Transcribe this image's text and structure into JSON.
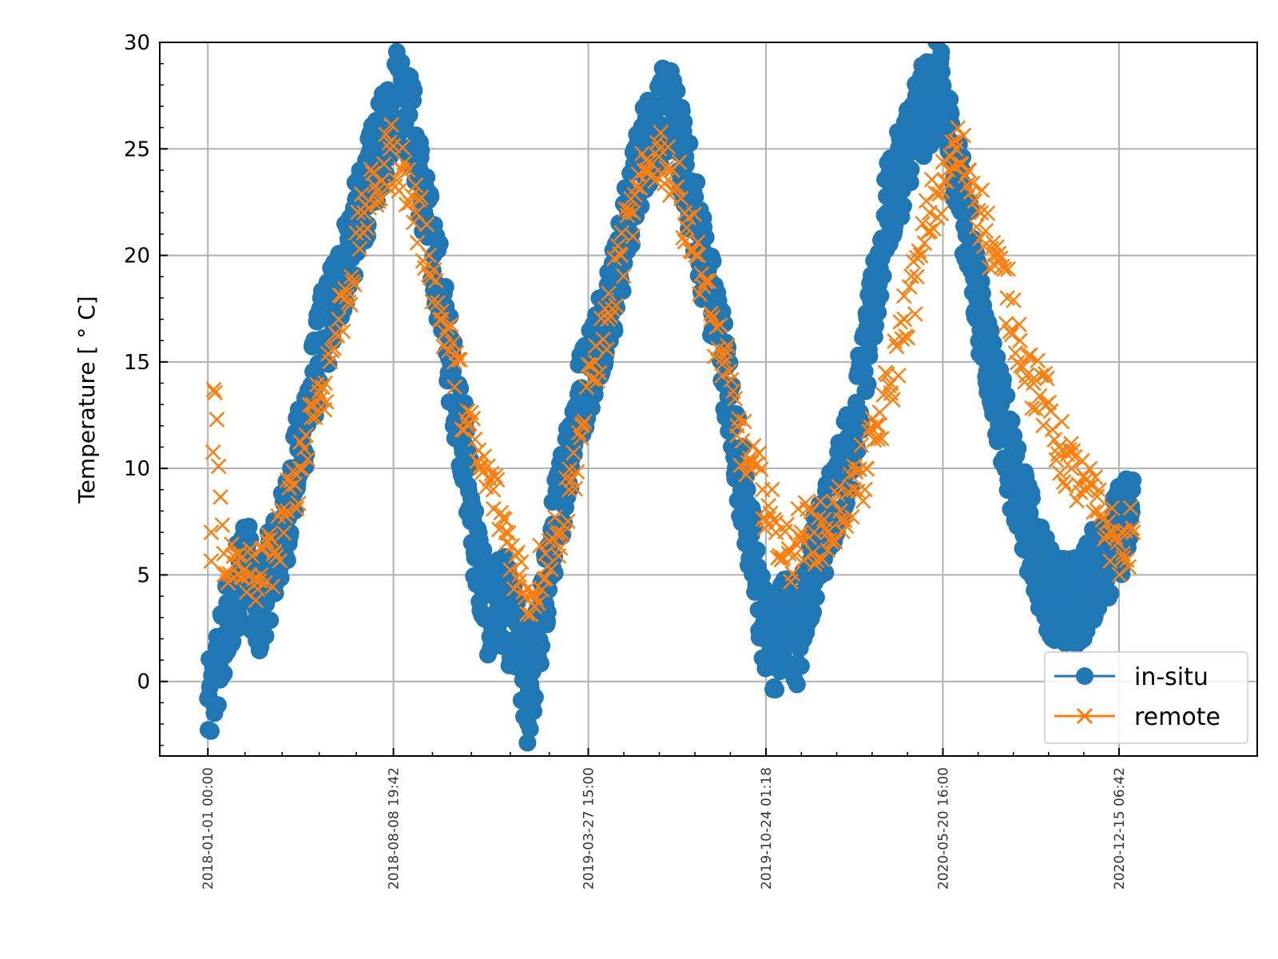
{
  "chart_data": {
    "type": "scatter",
    "title": "",
    "xlabel": "",
    "ylabel": "Temperature [$^\\circ C$]",
    "ylabel_display": "Temperature [ ° C]",
    "x_ticks": [
      "2018-01-01 00:00",
      "2018-08-08 19:42",
      "2019-03-27 15:00",
      "2019-10-24 01:18",
      "2020-05-20 16:00",
      "2020-12-15 06:42"
    ],
    "xlim": [
      "2017-11-05",
      "2021-05-28"
    ],
    "ylim": [
      -3.5,
      30
    ],
    "y_ticks": [
      0,
      5,
      10,
      15,
      20,
      25,
      30
    ],
    "grid": true,
    "legend_position": "lower right",
    "series": [
      {
        "name": "in-situ",
        "marker": "circle",
        "color": "#1f77b4",
        "x": [
          "2018-01-01",
          "2018-01-15",
          "2018-02-01",
          "2018-02-15",
          "2018-03-01",
          "2018-03-15",
          "2018-04-01",
          "2018-04-15",
          "2018-05-01",
          "2018-05-15",
          "2018-06-01",
          "2018-06-15",
          "2018-07-01",
          "2018-07-15",
          "2018-08-01",
          "2018-08-15",
          "2018-09-01",
          "2018-09-15",
          "2018-10-01",
          "2018-10-15",
          "2018-11-01",
          "2018-11-15",
          "2018-12-01",
          "2018-12-15",
          "2019-01-01",
          "2019-01-15",
          "2019-02-01",
          "2019-02-15",
          "2019-03-01",
          "2019-03-15",
          "2019-04-01",
          "2019-04-15",
          "2019-05-01",
          "2019-05-15",
          "2019-06-01",
          "2019-06-15",
          "2019-07-01",
          "2019-07-15",
          "2019-08-01",
          "2019-08-15",
          "2019-09-01",
          "2019-09-15",
          "2019-10-01",
          "2019-10-15",
          "2019-11-01",
          "2019-11-15",
          "2019-12-01",
          "2019-12-15",
          "2020-01-01",
          "2020-01-15",
          "2020-02-01",
          "2020-02-15",
          "2020-03-01",
          "2020-03-15",
          "2020-04-01",
          "2020-04-15",
          "2020-05-01",
          "2020-05-15",
          "2020-06-01",
          "2020-06-15",
          "2020-07-01",
          "2020-07-15",
          "2020-08-01",
          "2020-08-15",
          "2020-09-01",
          "2020-09-15",
          "2020-10-01",
          "2020-10-15",
          "2020-11-01",
          "2020-11-15",
          "2020-12-01",
          "2020-12-15",
          "2021-01-01"
        ],
        "y": [
          -1.5,
          1,
          4,
          6,
          3,
          5,
          7,
          10,
          13,
          16,
          18,
          20,
          22,
          24,
          26,
          28,
          26,
          22,
          19,
          15,
          11,
          6,
          3,
          4,
          2,
          -1,
          3,
          7,
          10,
          13,
          15,
          17,
          19,
          22,
          25,
          26,
          27,
          25,
          22,
          19,
          16,
          12,
          8,
          4,
          1,
          3,
          2,
          5,
          7,
          9,
          11,
          14,
          18,
          22,
          24,
          26,
          27,
          28,
          25,
          22,
          18,
          15,
          12,
          9,
          7,
          5,
          4,
          3.5,
          4,
          5,
          6,
          7,
          8
        ]
      },
      {
        "name": "remote",
        "marker": "x",
        "color": "#ff7f0e",
        "x": [
          "2018-01-05",
          "2018-01-08",
          "2018-01-20",
          "2018-02-05",
          "2018-02-20",
          "2018-03-05",
          "2018-03-20",
          "2018-04-05",
          "2018-04-20",
          "2018-05-05",
          "2018-05-20",
          "2018-06-05",
          "2018-06-20",
          "2018-07-05",
          "2018-07-20",
          "2018-08-05",
          "2018-08-20",
          "2018-09-05",
          "2018-09-20",
          "2018-10-05",
          "2018-10-20",
          "2018-11-05",
          "2018-11-20",
          "2018-12-05",
          "2018-12-20",
          "2019-01-05",
          "2019-01-20",
          "2019-02-05",
          "2019-02-20",
          "2019-03-05",
          "2019-03-20",
          "2019-04-05",
          "2019-04-20",
          "2019-05-05",
          "2019-05-20",
          "2019-06-05",
          "2019-06-20",
          "2019-07-05",
          "2019-07-20",
          "2019-08-05",
          "2019-08-20",
          "2019-09-05",
          "2019-09-20",
          "2019-10-05",
          "2019-10-20",
          "2019-11-05",
          "2019-11-20",
          "2019-12-05",
          "2019-12-20",
          "2020-01-05",
          "2020-01-20",
          "2020-02-05",
          "2020-02-20",
          "2020-03-05",
          "2020-03-20",
          "2020-04-05",
          "2020-04-20",
          "2020-05-05",
          "2020-05-20",
          "2020-06-05",
          "2020-06-20",
          "2020-07-05",
          "2020-07-20",
          "2020-08-05",
          "2020-08-20",
          "2020-09-05",
          "2020-09-20",
          "2020-10-05",
          "2020-10-20",
          "2020-11-05",
          "2020-11-20",
          "2020-12-05",
          "2020-12-20",
          "2021-01-01"
        ],
        "y": [
          7,
          13.7,
          6,
          5,
          5,
          5,
          6,
          8,
          10,
          13,
          14,
          17,
          19,
          22,
          23,
          25,
          24,
          22,
          20,
          17,
          15,
          12,
          10,
          9,
          7,
          5,
          4,
          6,
          7,
          9,
          12,
          15,
          17,
          20,
          22,
          24,
          25,
          24,
          22,
          20,
          17,
          15,
          12,
          10,
          9,
          7,
          6,
          7,
          7,
          7,
          8,
          9,
          10,
          12,
          14,
          17,
          19,
          22,
          23,
          25,
          24,
          22,
          20,
          18,
          16,
          14,
          13,
          11,
          10,
          9,
          8,
          7,
          6,
          7
        ]
      }
    ]
  }
}
